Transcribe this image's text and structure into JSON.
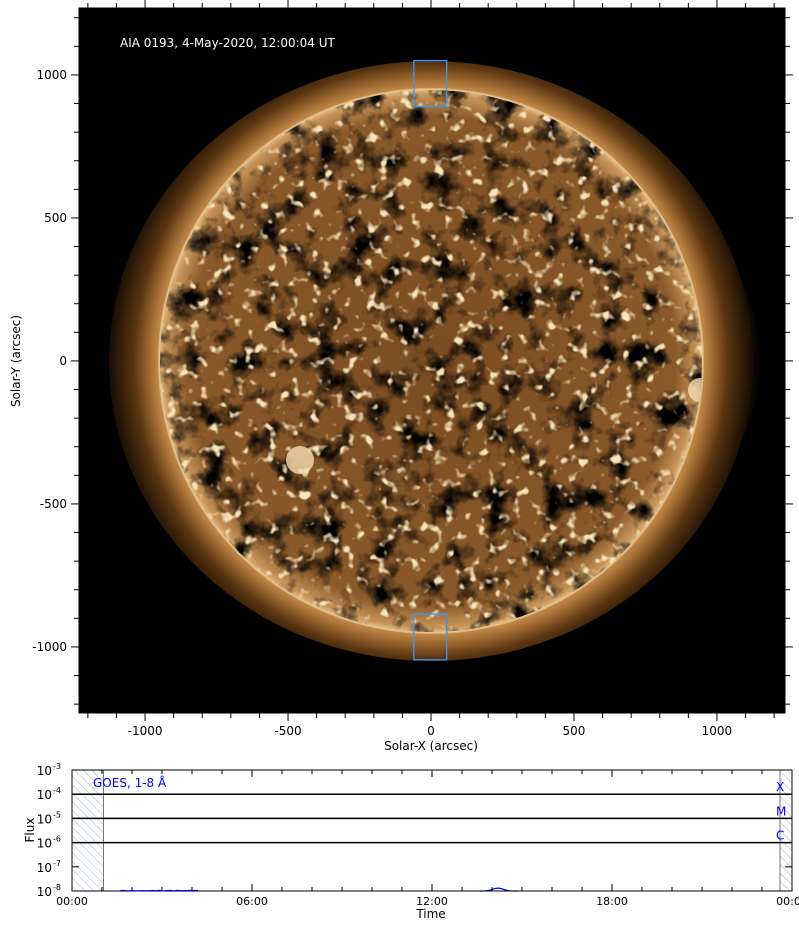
{
  "image_panel": {
    "title": "AIA 0193, 4-May-2020, 12:00:04 UT",
    "xlabel": "Solar-X (arcsec)",
    "ylabel": "Solar-Y (arcsec)",
    "xticks": [
      "-1000",
      "-500",
      "0",
      "500",
      "1000"
    ],
    "yticks": [
      "1000",
      "500",
      "0",
      "-500",
      "-1000"
    ],
    "xlim": [
      -1231,
      1238
    ],
    "ylim": [
      -1231,
      1234
    ],
    "colormap_color": "#b8864a",
    "box_color": "#3399ff",
    "boxes": [
      {
        "x": [
          -60,
          55
        ],
        "y": [
          890,
          1050
        ]
      },
      {
        "x": [
          -60,
          55
        ],
        "y": [
          -1045,
          -885
        ]
      }
    ]
  },
  "goes_panel": {
    "label": "GOES, 1-8 Å",
    "xlabel": "Time",
    "ylabel": "Flux",
    "xticks": [
      "00:00",
      "06:00",
      "12:00",
      "18:00",
      "00:00"
    ],
    "yticks": [
      {
        "base": "10",
        "exp": "-3"
      },
      {
        "base": "10",
        "exp": "-4"
      },
      {
        "base": "10",
        "exp": "-5"
      },
      {
        "base": "10",
        "exp": "-6"
      },
      {
        "base": "10",
        "exp": "-7"
      },
      {
        "base": "10",
        "exp": "-8"
      }
    ],
    "classes": [
      "X",
      "M",
      "C"
    ],
    "series_color": "#0000ff",
    "hatch_color": "#9fb6d6",
    "no_data_hours": [
      [
        0,
        1.05
      ],
      [
        23.6,
        24
      ]
    ]
  }
}
